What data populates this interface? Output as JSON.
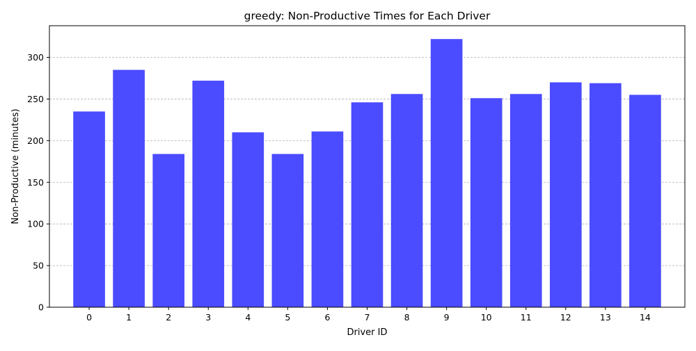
{
  "chart_data": {
    "type": "bar",
    "title": "greedy: Non-Productive Times for Each Driver",
    "xlabel": "Driver ID",
    "ylabel": "Non-Productive (minutes)",
    "categories": [
      "0",
      "1",
      "2",
      "3",
      "4",
      "5",
      "6",
      "7",
      "8",
      "9",
      "10",
      "11",
      "12",
      "13",
      "14"
    ],
    "values": [
      235,
      285,
      184,
      272,
      210,
      184,
      211,
      246,
      256,
      322,
      251,
      256,
      270,
      269,
      255
    ],
    "ylim": [
      0,
      338
    ],
    "yticks": [
      0,
      50,
      100,
      150,
      200,
      250,
      300
    ],
    "grid": "y-axis, dashed",
    "bar_color": "#4b4bff",
    "legend": "none"
  }
}
